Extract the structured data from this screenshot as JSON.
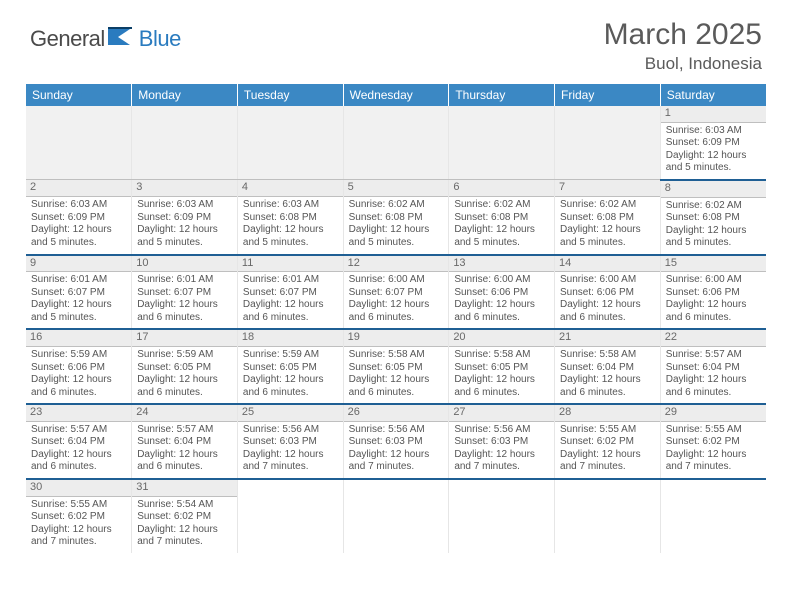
{
  "logo": {
    "word1": "General",
    "word2": "Blue",
    "color1": "#4a4a4a",
    "color2": "#2a7bbf"
  },
  "title": "March 2025",
  "location": "Buol, Indonesia",
  "weekday_header_bg": "#3b88c4",
  "row_border_color": "#1f5f94",
  "weekdays": [
    "Sunday",
    "Monday",
    "Tuesday",
    "Wednesday",
    "Thursday",
    "Friday",
    "Saturday"
  ],
  "weeks": [
    [
      null,
      null,
      null,
      null,
      null,
      null,
      {
        "n": "1",
        "sr": "Sunrise: 6:03 AM",
        "ss": "Sunset: 6:09 PM",
        "dl": "Daylight: 12 hours and 5 minutes."
      }
    ],
    [
      {
        "n": "2",
        "sr": "Sunrise: 6:03 AM",
        "ss": "Sunset: 6:09 PM",
        "dl": "Daylight: 12 hours and 5 minutes."
      },
      {
        "n": "3",
        "sr": "Sunrise: 6:03 AM",
        "ss": "Sunset: 6:09 PM",
        "dl": "Daylight: 12 hours and 5 minutes."
      },
      {
        "n": "4",
        "sr": "Sunrise: 6:03 AM",
        "ss": "Sunset: 6:08 PM",
        "dl": "Daylight: 12 hours and 5 minutes."
      },
      {
        "n": "5",
        "sr": "Sunrise: 6:02 AM",
        "ss": "Sunset: 6:08 PM",
        "dl": "Daylight: 12 hours and 5 minutes."
      },
      {
        "n": "6",
        "sr": "Sunrise: 6:02 AM",
        "ss": "Sunset: 6:08 PM",
        "dl": "Daylight: 12 hours and 5 minutes."
      },
      {
        "n": "7",
        "sr": "Sunrise: 6:02 AM",
        "ss": "Sunset: 6:08 PM",
        "dl": "Daylight: 12 hours and 5 minutes."
      },
      {
        "n": "8",
        "sr": "Sunrise: 6:02 AM",
        "ss": "Sunset: 6:08 PM",
        "dl": "Daylight: 12 hours and 5 minutes."
      }
    ],
    [
      {
        "n": "9",
        "sr": "Sunrise: 6:01 AM",
        "ss": "Sunset: 6:07 PM",
        "dl": "Daylight: 12 hours and 5 minutes."
      },
      {
        "n": "10",
        "sr": "Sunrise: 6:01 AM",
        "ss": "Sunset: 6:07 PM",
        "dl": "Daylight: 12 hours and 6 minutes."
      },
      {
        "n": "11",
        "sr": "Sunrise: 6:01 AM",
        "ss": "Sunset: 6:07 PM",
        "dl": "Daylight: 12 hours and 6 minutes."
      },
      {
        "n": "12",
        "sr": "Sunrise: 6:00 AM",
        "ss": "Sunset: 6:07 PM",
        "dl": "Daylight: 12 hours and 6 minutes."
      },
      {
        "n": "13",
        "sr": "Sunrise: 6:00 AM",
        "ss": "Sunset: 6:06 PM",
        "dl": "Daylight: 12 hours and 6 minutes."
      },
      {
        "n": "14",
        "sr": "Sunrise: 6:00 AM",
        "ss": "Sunset: 6:06 PM",
        "dl": "Daylight: 12 hours and 6 minutes."
      },
      {
        "n": "15",
        "sr": "Sunrise: 6:00 AM",
        "ss": "Sunset: 6:06 PM",
        "dl": "Daylight: 12 hours and 6 minutes."
      }
    ],
    [
      {
        "n": "16",
        "sr": "Sunrise: 5:59 AM",
        "ss": "Sunset: 6:06 PM",
        "dl": "Daylight: 12 hours and 6 minutes."
      },
      {
        "n": "17",
        "sr": "Sunrise: 5:59 AM",
        "ss": "Sunset: 6:05 PM",
        "dl": "Daylight: 12 hours and 6 minutes."
      },
      {
        "n": "18",
        "sr": "Sunrise: 5:59 AM",
        "ss": "Sunset: 6:05 PM",
        "dl": "Daylight: 12 hours and 6 minutes."
      },
      {
        "n": "19",
        "sr": "Sunrise: 5:58 AM",
        "ss": "Sunset: 6:05 PM",
        "dl": "Daylight: 12 hours and 6 minutes."
      },
      {
        "n": "20",
        "sr": "Sunrise: 5:58 AM",
        "ss": "Sunset: 6:05 PM",
        "dl": "Daylight: 12 hours and 6 minutes."
      },
      {
        "n": "21",
        "sr": "Sunrise: 5:58 AM",
        "ss": "Sunset: 6:04 PM",
        "dl": "Daylight: 12 hours and 6 minutes."
      },
      {
        "n": "22",
        "sr": "Sunrise: 5:57 AM",
        "ss": "Sunset: 6:04 PM",
        "dl": "Daylight: 12 hours and 6 minutes."
      }
    ],
    [
      {
        "n": "23",
        "sr": "Sunrise: 5:57 AM",
        "ss": "Sunset: 6:04 PM",
        "dl": "Daylight: 12 hours and 6 minutes."
      },
      {
        "n": "24",
        "sr": "Sunrise: 5:57 AM",
        "ss": "Sunset: 6:04 PM",
        "dl": "Daylight: 12 hours and 6 minutes."
      },
      {
        "n": "25",
        "sr": "Sunrise: 5:56 AM",
        "ss": "Sunset: 6:03 PM",
        "dl": "Daylight: 12 hours and 7 minutes."
      },
      {
        "n": "26",
        "sr": "Sunrise: 5:56 AM",
        "ss": "Sunset: 6:03 PM",
        "dl": "Daylight: 12 hours and 7 minutes."
      },
      {
        "n": "27",
        "sr": "Sunrise: 5:56 AM",
        "ss": "Sunset: 6:03 PM",
        "dl": "Daylight: 12 hours and 7 minutes."
      },
      {
        "n": "28",
        "sr": "Sunrise: 5:55 AM",
        "ss": "Sunset: 6:02 PM",
        "dl": "Daylight: 12 hours and 7 minutes."
      },
      {
        "n": "29",
        "sr": "Sunrise: 5:55 AM",
        "ss": "Sunset: 6:02 PM",
        "dl": "Daylight: 12 hours and 7 minutes."
      }
    ],
    [
      {
        "n": "30",
        "sr": "Sunrise: 5:55 AM",
        "ss": "Sunset: 6:02 PM",
        "dl": "Daylight: 12 hours and 7 minutes."
      },
      {
        "n": "31",
        "sr": "Sunrise: 5:54 AM",
        "ss": "Sunset: 6:02 PM",
        "dl": "Daylight: 12 hours and 7 minutes."
      },
      null,
      null,
      null,
      null,
      null
    ]
  ]
}
